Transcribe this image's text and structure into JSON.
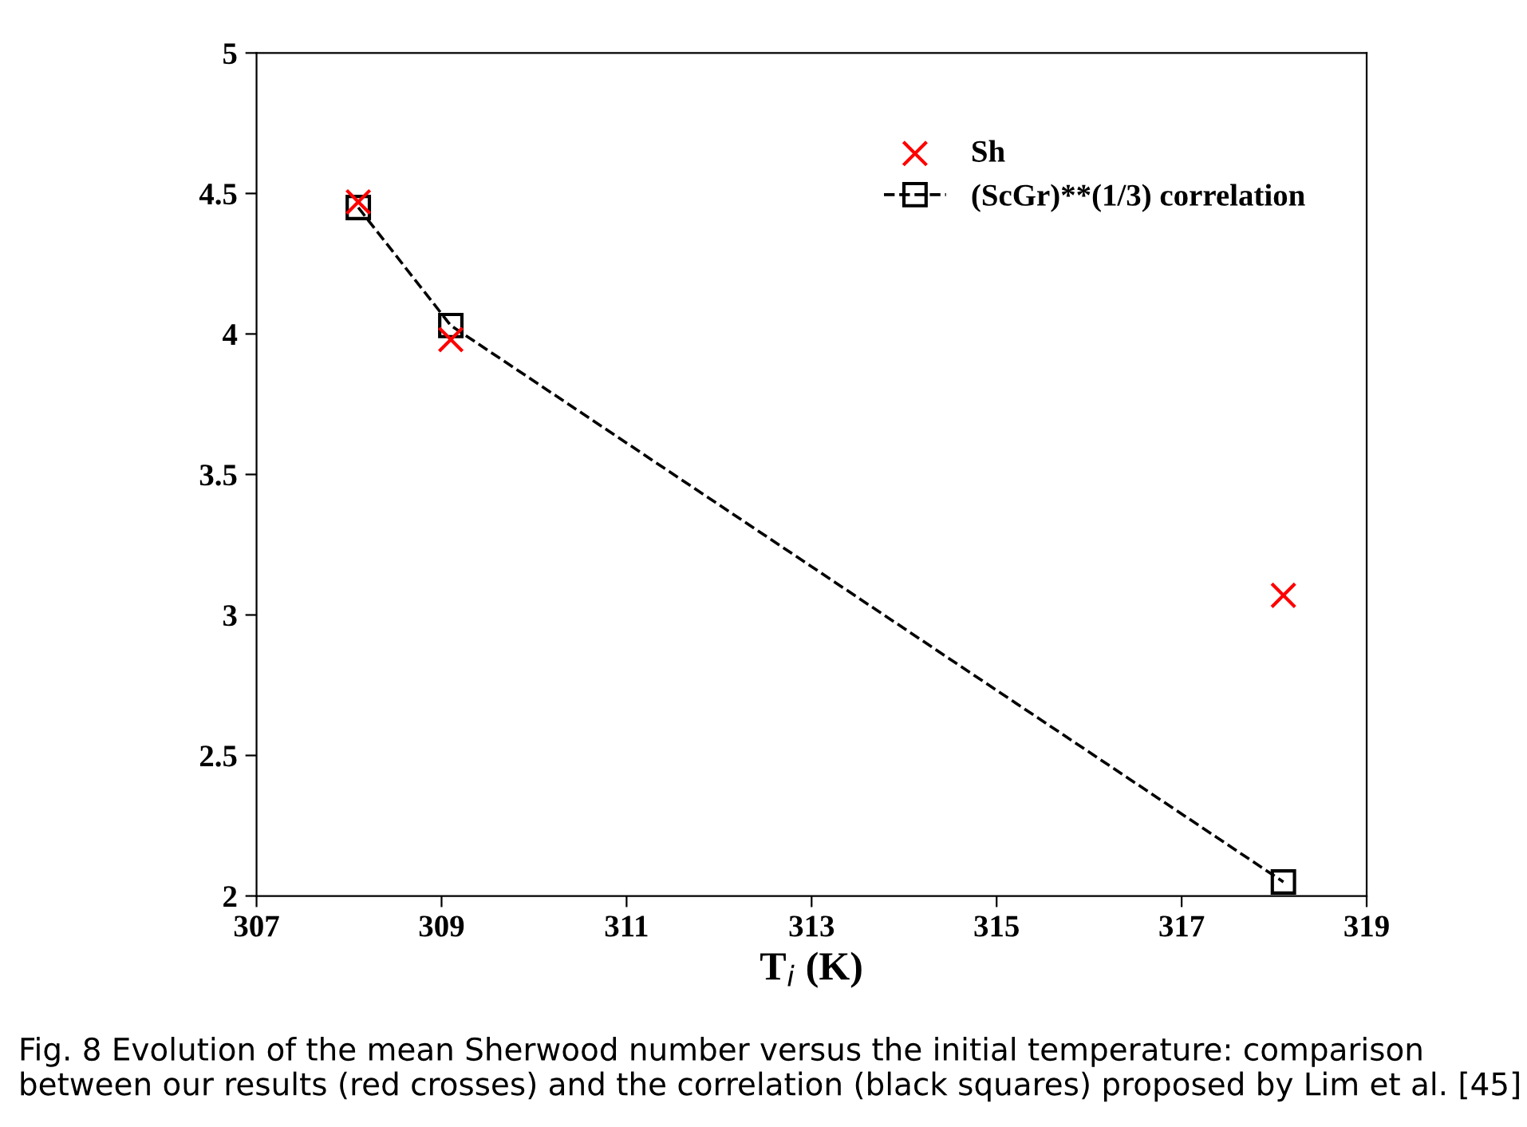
{
  "chart_data": {
    "type": "scatter",
    "xlabel": "T$_{i}$ (K)",
    "xlim": [
      307,
      319
    ],
    "xticks": [
      307,
      309,
      311,
      313,
      315,
      317,
      319
    ],
    "ylim": [
      2,
      5
    ],
    "yticks": [
      2,
      2.5,
      3,
      3.5,
      4,
      4.5,
      5
    ],
    "grid": false,
    "legend": "top right",
    "series": [
      {
        "name": "Sh",
        "marker": "cross",
        "color": "#ff0000",
        "x": [
          308.1,
          309.1,
          318.1
        ],
        "values": [
          4.47,
          3.98,
          3.07
        ]
      },
      {
        "name": "(ScGr)**(1/3) correlation",
        "type": "line",
        "marker": "square",
        "line_style": "dashed",
        "color": "#000000",
        "x": [
          308.1,
          309.1,
          318.1
        ],
        "values": [
          4.45,
          4.03,
          2.05
        ]
      }
    ],
    "annotations": [
      "Fig. 8 Evolution of the mean Sherwood number versus the initial temperature: comparison between our results (red crosses) and the correlation (black squares) proposed by Lim et al. [45]"
    ]
  }
}
